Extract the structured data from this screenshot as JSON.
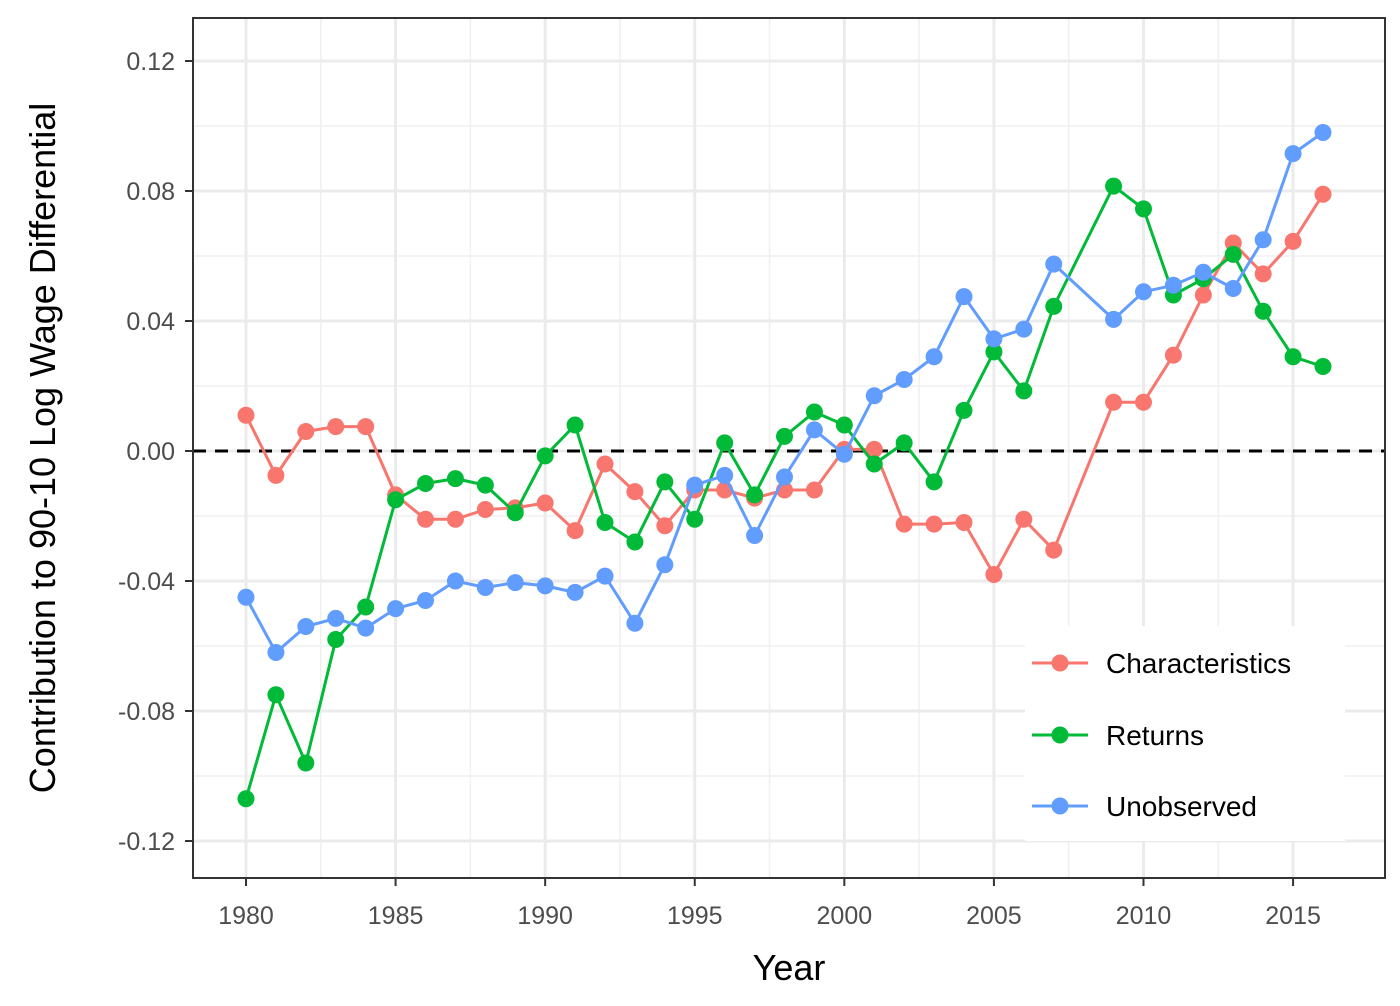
{
  "chart_data": {
    "type": "line",
    "xlabel": "Year",
    "ylabel": "Contribution to 90-10 Log Wage Differential",
    "xlim": [
      1978.3,
      1917.7
    ],
    "ylim": [
      -0.131,
      0.1325
    ],
    "x_ticks": [
      1980,
      1985,
      1990,
      1995,
      2000,
      2005,
      2010,
      2015
    ],
    "x_tick_labels": [
      "1980",
      "1985",
      "1990",
      "1995",
      "2000",
      "2005",
      "2010",
      "2015"
    ],
    "y_ticks": [
      -0.12,
      -0.08,
      -0.04,
      0.0,
      0.04,
      0.08,
      0.12
    ],
    "y_tick_labels": [
      "-0.12",
      "-0.08",
      "-0.04",
      "0.00",
      "0.04",
      "0.08",
      "0.12"
    ],
    "grid": true,
    "reference_line": {
      "y": 0,
      "style": "dashed"
    },
    "legend_position": "bottom-right",
    "x": [
      1980,
      1981,
      1982,
      1983,
      1984,
      1985,
      1986,
      1987,
      1988,
      1989,
      1990,
      1991,
      1992,
      1993,
      1994,
      1995,
      1996,
      1997,
      1998,
      1999,
      2000,
      2001,
      2002,
      2003,
      2004,
      2005,
      2006,
      2007,
      2009,
      2010,
      2011,
      2012,
      2013,
      2014,
      2015,
      2016
    ],
    "series": [
      {
        "name": "Characteristics",
        "color": "#F8766D",
        "values": [
          0.011,
          -0.0075,
          0.006,
          0.0075,
          0.0075,
          -0.0135,
          -0.021,
          -0.021,
          -0.018,
          -0.0175,
          -0.016,
          -0.0245,
          -0.004,
          -0.0125,
          -0.023,
          -0.012,
          -0.012,
          -0.0145,
          -0.012,
          -0.012,
          0.0005,
          0.0005,
          -0.0225,
          -0.0225,
          -0.022,
          -0.038,
          -0.021,
          -0.0305,
          0.015,
          0.015,
          0.0295,
          0.048,
          0.064,
          0.0545,
          0.0645,
          0.079
        ]
      },
      {
        "name": "Returns",
        "color": "#00BA38",
        "values": [
          -0.107,
          -0.075,
          -0.096,
          -0.058,
          -0.048,
          -0.015,
          -0.01,
          -0.0085,
          -0.0105,
          -0.019,
          -0.0015,
          0.008,
          -0.022,
          -0.028,
          -0.0095,
          -0.021,
          0.0025,
          -0.0135,
          0.0045,
          0.012,
          0.008,
          -0.004,
          0.0025,
          -0.0095,
          0.0125,
          0.0305,
          0.0185,
          0.0445,
          0.0815,
          0.0745,
          0.048,
          0.053,
          0.0605,
          0.043,
          0.029,
          0.026
        ]
      },
      {
        "name": "Unobserved",
        "color": "#619CFF",
        "values": [
          -0.045,
          -0.062,
          -0.054,
          -0.0515,
          -0.0545,
          -0.0485,
          -0.046,
          -0.04,
          -0.042,
          -0.0405,
          -0.0415,
          -0.0435,
          -0.0385,
          -0.053,
          -0.035,
          -0.0105,
          -0.0075,
          -0.026,
          -0.008,
          0.0065,
          -0.001,
          0.017,
          0.022,
          0.029,
          0.0475,
          0.0345,
          0.0375,
          0.0575,
          0.0405,
          0.049,
          0.051,
          0.055,
          0.05,
          0.065,
          0.0915,
          0.098
        ]
      }
    ]
  }
}
